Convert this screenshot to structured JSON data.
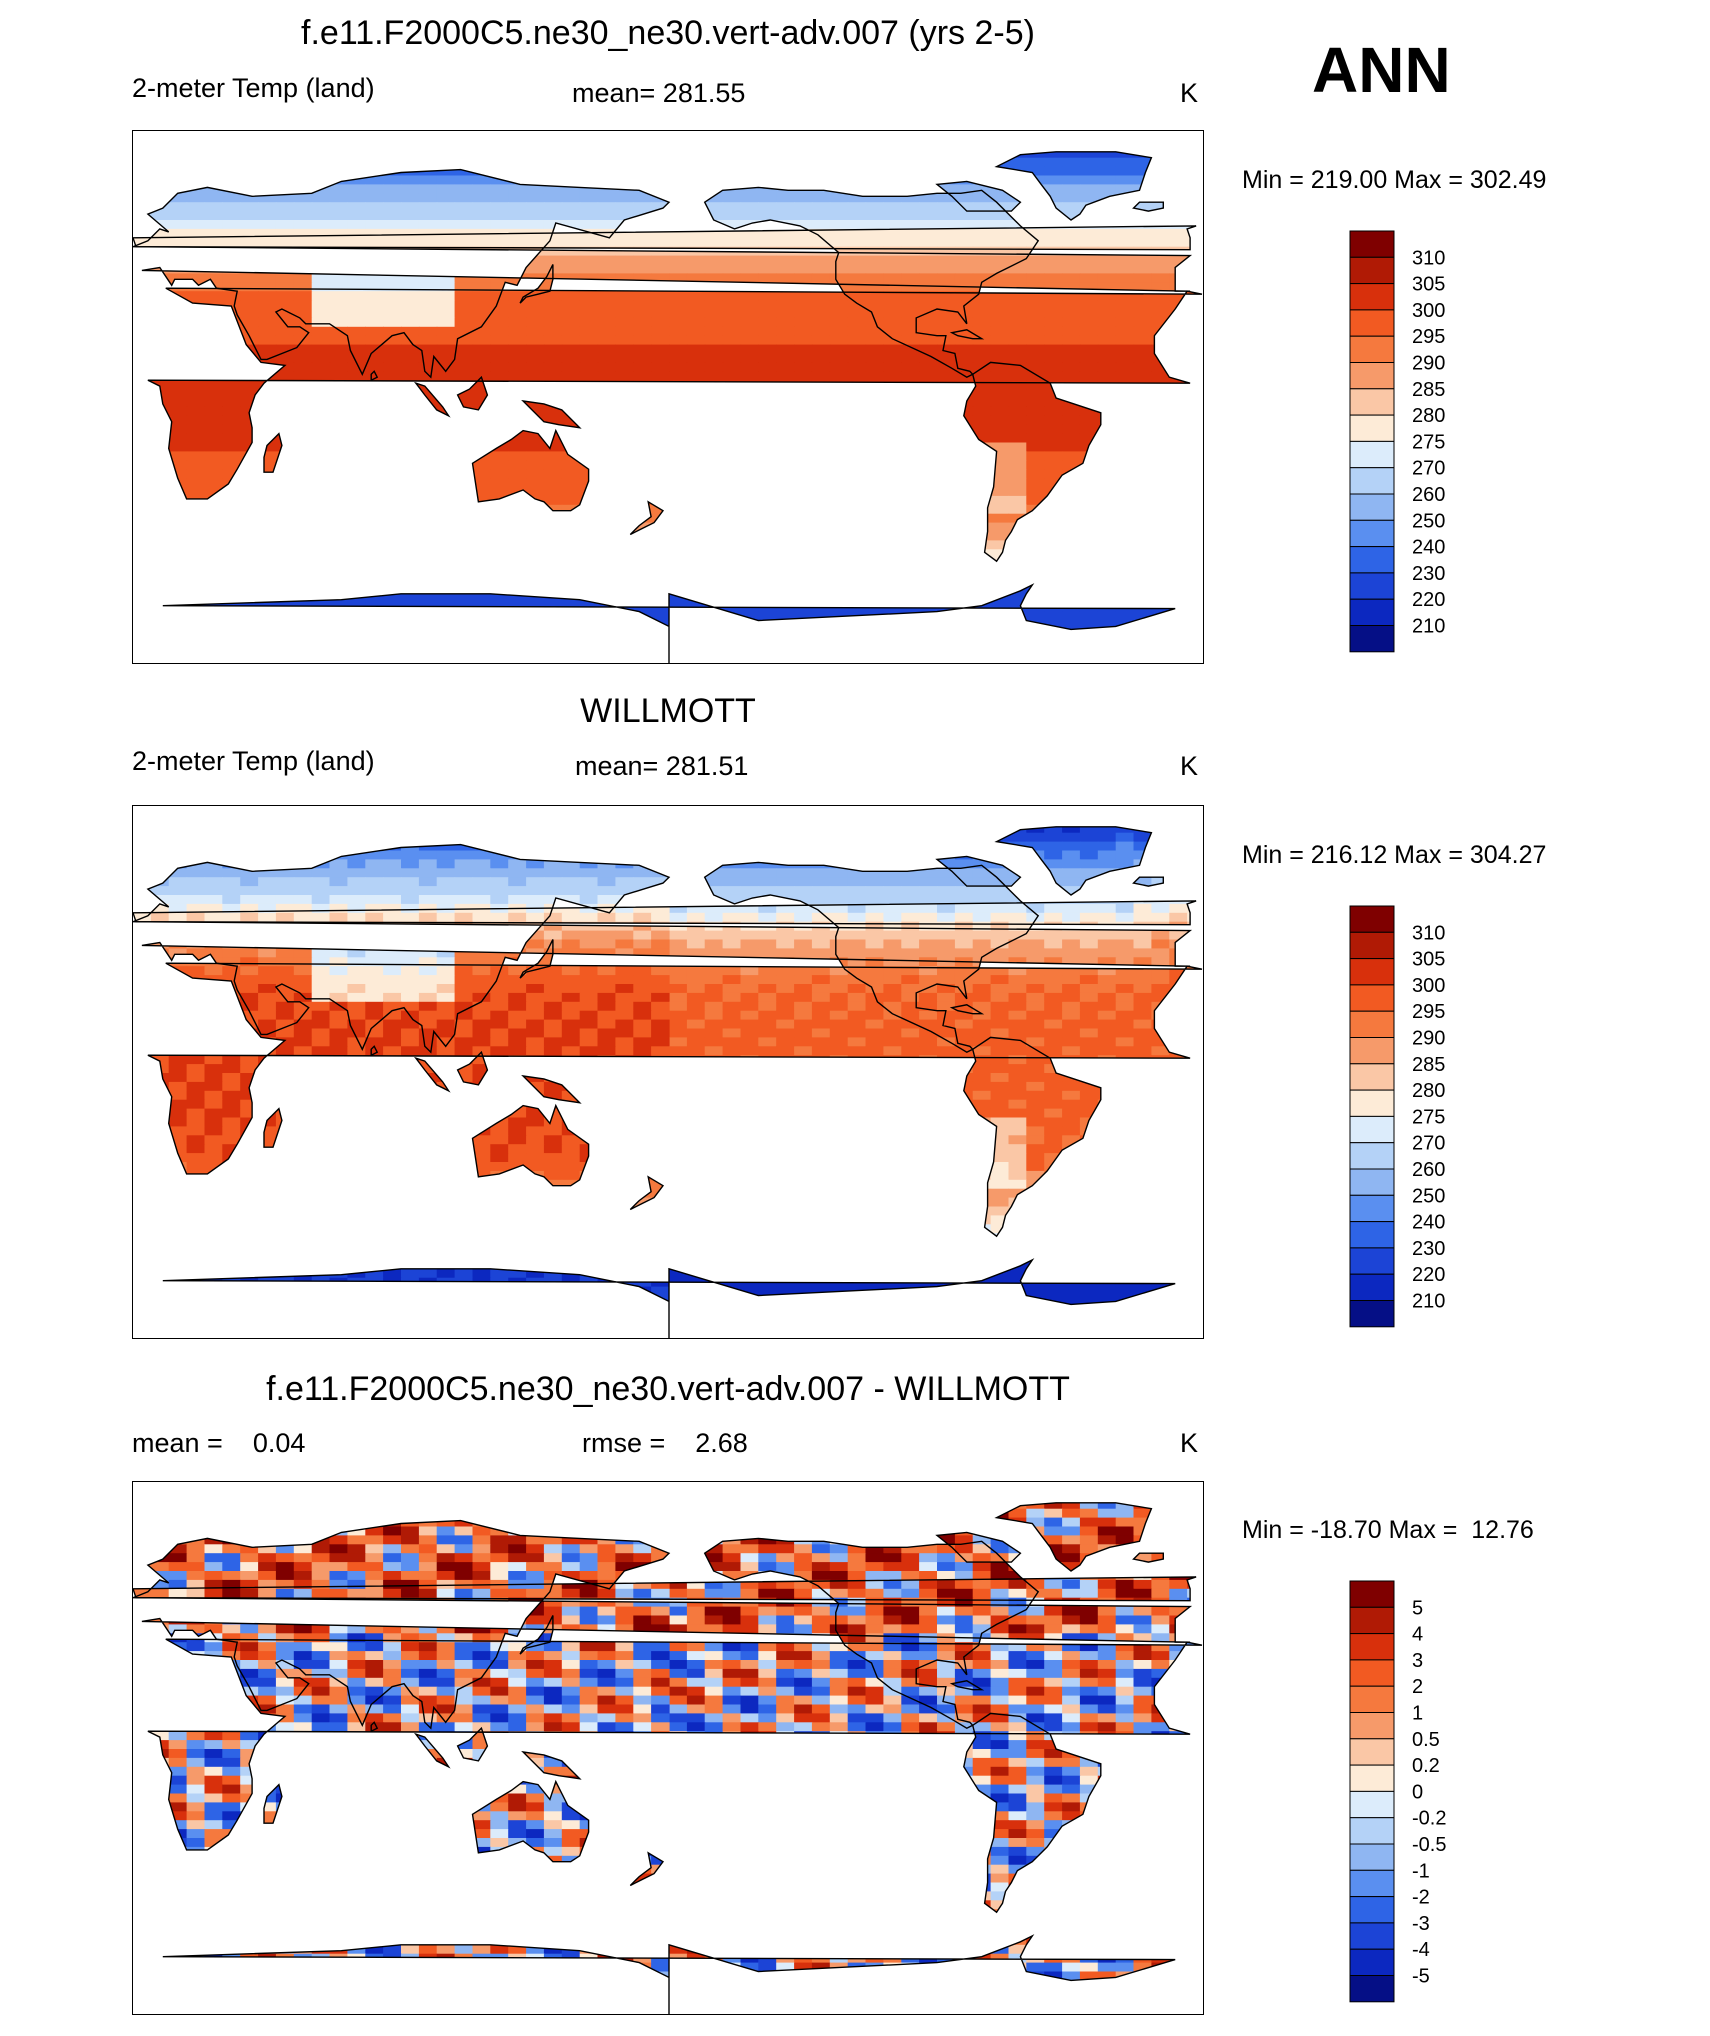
{
  "corner_label": "ANN",
  "panels": [
    {
      "title": "f.e11.F2000C5.ne30_ne30.vert-adv.007 (yrs 2-5)",
      "left": "2-meter Temp (land)",
      "center": "mean= 281.55",
      "units": "K",
      "minmax": "Min = 219.00 Max = 302.49",
      "kind": "abs"
    },
    {
      "title": "WILLMOTT",
      "left": "2-meter Temp (land)",
      "center": "mean= 281.51",
      "units": "K",
      "minmax": "Min = 216.12 Max = 304.27",
      "kind": "abs"
    },
    {
      "title": "f.e11.F2000C5.ne30_ne30.vert-adv.007 - WILLMOTT",
      "left": "mean =    0.04",
      "center": "rmse =    2.68",
      "units": "K",
      "minmax": "Min = -18.70 Max =  12.76",
      "kind": "diff"
    }
  ],
  "colorbar_abs": {
    "labels": [
      "310",
      "305",
      "300",
      "295",
      "290",
      "285",
      "280",
      "275",
      "270",
      "260",
      "250",
      "240",
      "230",
      "220",
      "210"
    ],
    "colors": [
      "#7f0000",
      "#b01a05",
      "#d8300c",
      "#f25a22",
      "#f5793e",
      "#f69a6a",
      "#fac7a6",
      "#fdebd7",
      "#dcecfb",
      "#b4d2f7",
      "#8fb6f2",
      "#5a8ff0",
      "#2e64e6",
      "#1c44d6",
      "#0c28c0",
      "#050f86"
    ]
  },
  "colorbar_diff": {
    "labels": [
      "5",
      "4",
      "3",
      "2",
      "1",
      "0.5",
      "0.2",
      "0",
      "-0.2",
      "-0.5",
      "-1",
      "-2",
      "-3",
      "-4",
      "-5"
    ],
    "colors": [
      "#7f0000",
      "#b01a05",
      "#d8300c",
      "#f25a22",
      "#f5793e",
      "#f69a6a",
      "#fac7a6",
      "#fdebd7",
      "#dcecfb",
      "#b4d2f7",
      "#8fb6f2",
      "#5a8ff0",
      "#2e64e6",
      "#1c44d6",
      "#0c28c0",
      "#050f86"
    ]
  }
}
